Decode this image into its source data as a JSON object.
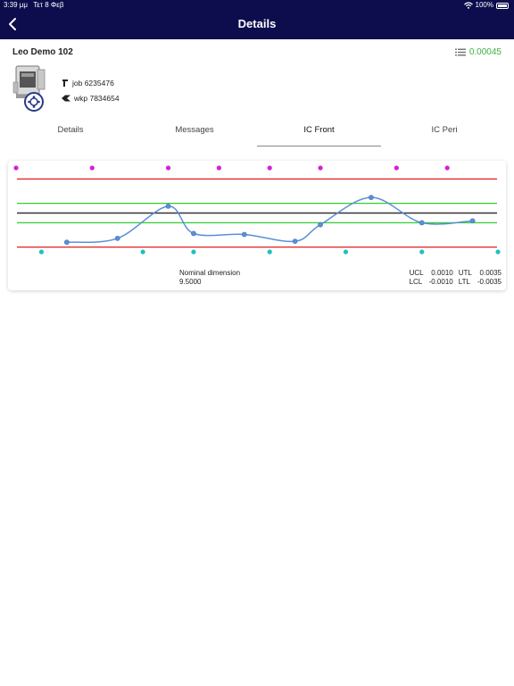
{
  "status_bar": {
    "time": "3:39 μμ",
    "date": "Τετ 8 Φεβ",
    "battery": "100%"
  },
  "navbar": {
    "title": "Details"
  },
  "machine": {
    "name": "Leo Demo 102",
    "metric_value": "0.00045",
    "job": "job 6235476",
    "wkp": "wkp 7834654"
  },
  "tabs": [
    {
      "label": "Details",
      "active": false
    },
    {
      "label": "Messages",
      "active": false
    },
    {
      "label": "IC Front",
      "active": true
    },
    {
      "label": "IC Peri",
      "active": false
    }
  ],
  "nominal": {
    "label": "Nominal dimension",
    "value": "9.5000"
  },
  "limits": {
    "ucl_label": "UCL",
    "ucl": "0.0010",
    "utl_label": "UTL",
    "utl": "0.0035",
    "lcl_label": "LCL",
    "lcl": "-0.0010",
    "ltl_label": "LTL",
    "ltl": "-0.0035"
  },
  "colors": {
    "navy": "#0d0d4d",
    "green_value": "#3cb043",
    "tolerance_line": "#e02020",
    "control_line": "#33cc33",
    "nominal_line": "#333333",
    "series": "#5b8fd6",
    "top_markers": "#d420d4",
    "bottom_markers": "#20c0c0"
  },
  "chart_data": {
    "type": "line",
    "xlim": [
      0,
      19
    ],
    "ylim": [
      -0.005,
      0.005
    ],
    "reference_lines": {
      "utl": 0.0035,
      "ucl": 0.001,
      "nominal": 0.0,
      "lcl": -0.001,
      "ltl": -0.0035
    },
    "series": [
      {
        "values": [
          {
            "x": 2,
            "y": -0.003
          },
          {
            "x": 4,
            "y": -0.0026
          },
          {
            "x": 6,
            "y": 0.0007
          },
          {
            "x": 7,
            "y": -0.0021
          },
          {
            "x": 9,
            "y": -0.0022
          },
          {
            "x": 11,
            "y": -0.0029
          },
          {
            "x": 12,
            "y": -0.0012
          },
          {
            "x": 14,
            "y": 0.0016
          },
          {
            "x": 16,
            "y": -0.001
          },
          {
            "x": 18,
            "y": -0.0008
          }
        ]
      }
    ],
    "top_markers_x": [
      0,
      3,
      6,
      8,
      10,
      12,
      15,
      17
    ],
    "bottom_markers_x": [
      1,
      5,
      7,
      10,
      13,
      16,
      19
    ]
  }
}
